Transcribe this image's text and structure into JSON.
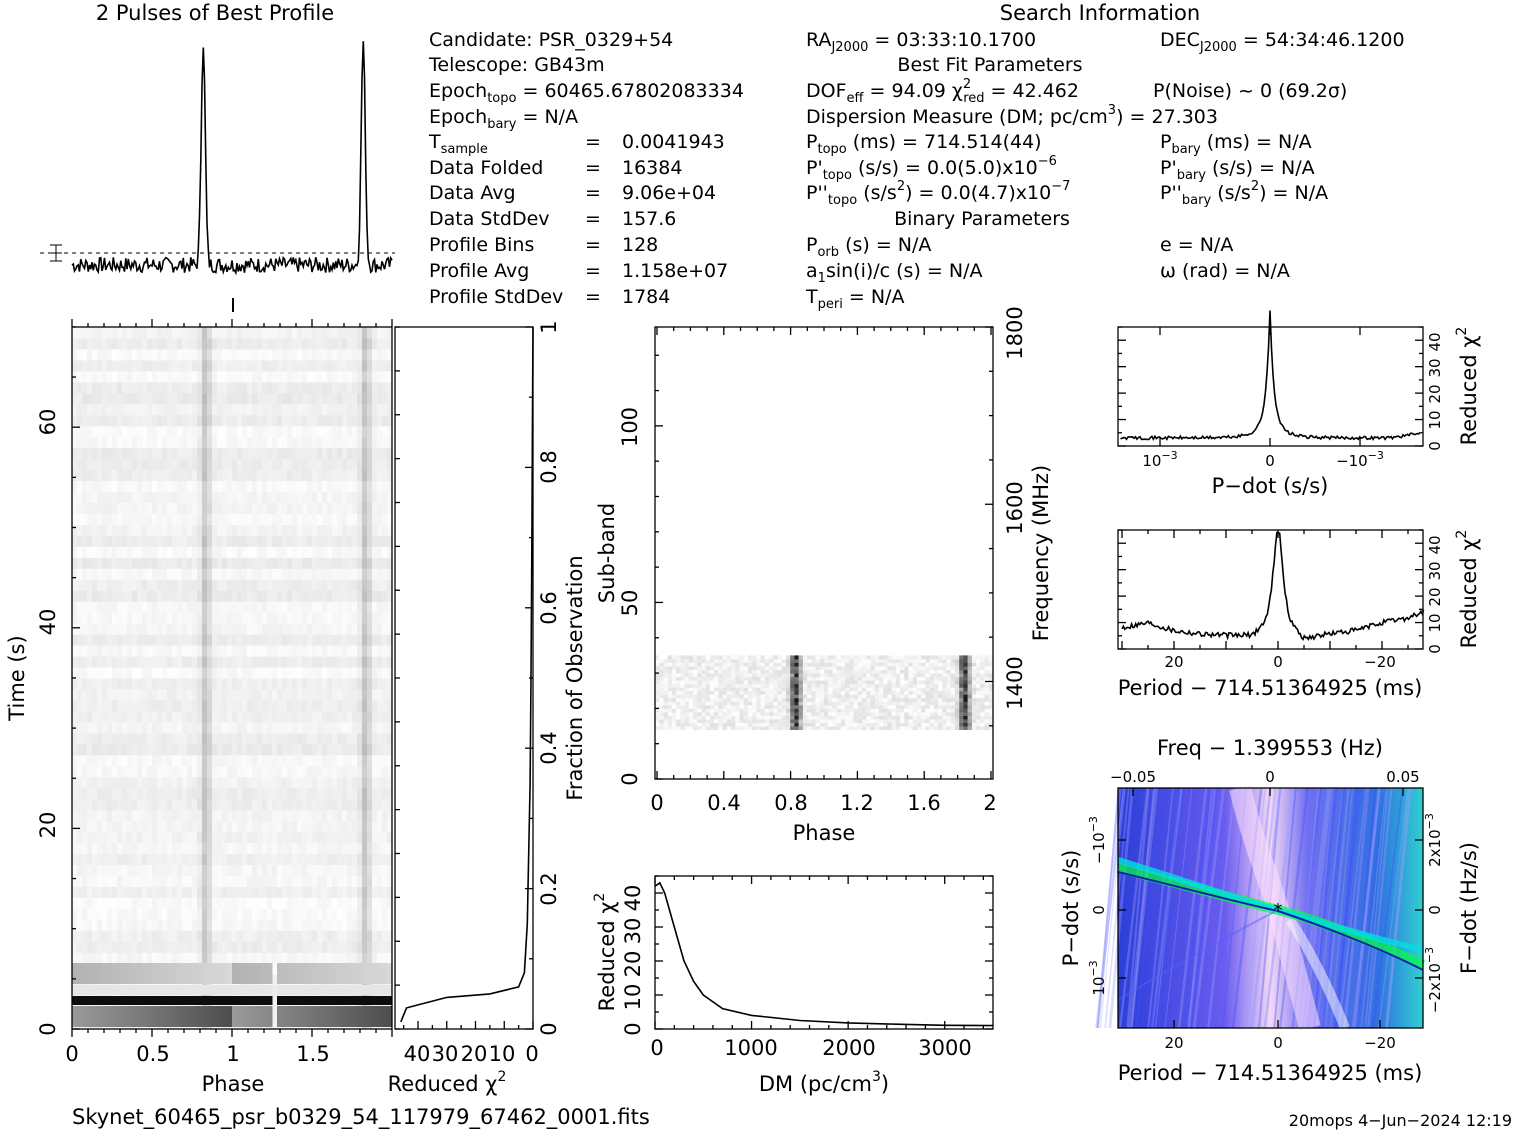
{
  "header": {
    "profile_title": "2 Pulses of Best Profile",
    "search_title": "Search Information",
    "best_fit_title": "Best Fit Parameters",
    "binary_title": "Binary Parameters"
  },
  "info": {
    "candidate": "PSR_0329+54",
    "telescope": "GB43m",
    "epoch_topo": "60465.67802083334",
    "epoch_bary": "N/A",
    "t_sample": "0.0041943",
    "data_folded": "16384",
    "data_avg": "9.06e+04",
    "data_stddev": "157.6",
    "profile_bins": "128",
    "profile_avg": "1.158e+07",
    "profile_stddev": "1784",
    "ra": "03:33:10.1700",
    "dec": "54:34:46.1200",
    "dof_eff": "94.09",
    "chi2_red": "42.462",
    "p_noise": "P(Noise) ~ 0    (69.2σ)",
    "dm_line": "Dispersion Measure (DM; pc/cm",
    "dm_value": ") = 27.303",
    "p_topo": "714.514(44)",
    "pd_topo": "0.0(5.0)x10",
    "pd_topo_exp": "−6",
    "pdd_topo": "0.0(4.7)x10",
    "pdd_topo_exp": "−7",
    "p_bary": "N/A",
    "pd_bary": "N/A",
    "pdd_bary": "N/A",
    "p_orb": "N/A",
    "a1sini": "N/A",
    "t_peri": "N/A",
    "ecc": "N/A",
    "omega": "N/A"
  },
  "footer": {
    "filename": "Skynet_60465_psr_b0329_54_117979_67462_0001.fits",
    "stamp": "20mops  4−Jun−2024 12:19"
  },
  "chart_data": [
    {
      "type": "line",
      "panel": "profile",
      "title": "2 Pulses of Best Profile",
      "x_range": [
        0,
        2
      ],
      "peaks_phase": [
        0.82,
        1.82
      ],
      "peak_height_relative": 1.0,
      "baseline_relative": 0.0
    },
    {
      "type": "heatmap",
      "panel": "time-phase",
      "xlabel": "Phase",
      "ylabel": "Time (s)",
      "xlim": [
        0,
        2
      ],
      "ylim": [
        0,
        70
      ],
      "x_ticks": [
        "0",
        "0.5",
        "1",
        "1.5"
      ],
      "y_ticks": [
        "0",
        "20",
        "40",
        "60"
      ],
      "pulse_phase": [
        0.82,
        1.82
      ]
    },
    {
      "type": "line",
      "panel": "reduced-chi2-vs-time",
      "xlabel": "Reduced χ",
      "x_ticks": [
        "40",
        "30",
        "20",
        "10",
        "0"
      ],
      "y_right_label": "Fraction of Observation",
      "y_right_ticks": [
        "0",
        "0.2",
        "0.4",
        "0.6",
        "0.8",
        "1"
      ],
      "x": [
        45,
        42,
        8,
        3,
        1,
        0.5,
        0
      ],
      "y": [
        0.02,
        0.05,
        0.08,
        0.2,
        0.4,
        0.7,
        1.0
      ]
    },
    {
      "type": "heatmap",
      "panel": "subband-phase",
      "xlabel": "Phase",
      "ylabel": "Sub-band",
      "y_right_label": "Frequency (MHz)",
      "xlim": [
        0,
        2
      ],
      "ylim": [
        0,
        128
      ],
      "x_ticks": [
        "0",
        "0.4",
        "0.8",
        "1.2",
        "1.6",
        "2"
      ],
      "y_ticks": [
        "0",
        "50",
        "100"
      ],
      "y_right_ticks": [
        "1400",
        "1600",
        "1800"
      ],
      "active_subbands": [
        14,
        35
      ],
      "pulse_phase": [
        0.82,
        1.82
      ]
    },
    {
      "type": "line",
      "panel": "dm-curve",
      "xlabel": "DM (pc/cm",
      "ylabel": "Reduced χ",
      "xlim": [
        0,
        3500
      ],
      "ylim": [
        0,
        45
      ],
      "x_ticks": [
        "0",
        "1000",
        "2000",
        "3000"
      ],
      "y_ticks": [
        "0",
        "10",
        "20",
        "30",
        "40"
      ],
      "x": [
        0,
        50,
        100,
        200,
        300,
        400,
        500,
        700,
        1000,
        1500,
        2000,
        2500,
        3000,
        3500
      ],
      "y": [
        42,
        43,
        40,
        30,
        20,
        14,
        10,
        6,
        4,
        2.5,
        1.8,
        1.4,
        1.1,
        1.0
      ]
    },
    {
      "type": "line",
      "panel": "pdot-curve",
      "xlabel": "P−dot (s/s)",
      "ylabel": "Reduced χ",
      "x_ticks": [
        "10",
        "0",
        "−10"
      ],
      "x_tick_exp": "−3",
      "y_ticks": [
        "0",
        "10",
        "20",
        "30",
        "40"
      ],
      "ylim": [
        0,
        45
      ],
      "x": [
        -1.0,
        -0.5,
        -0.2,
        -0.05,
        0,
        0.05,
        0.2,
        0.5,
        1.0
      ],
      "y": [
        2,
        2,
        3,
        10,
        42,
        10,
        3,
        2,
        3
      ]
    },
    {
      "type": "line",
      "panel": "period-curve",
      "xlabel": "Period − 714.51364925 (ms)",
      "ylabel": "Reduced χ",
      "x_ticks": [
        "20",
        "0",
        "−20"
      ],
      "y_ticks": [
        "0",
        "10",
        "20",
        "30",
        "40"
      ],
      "ylim": [
        0,
        45
      ],
      "x": [
        30,
        25,
        20,
        15,
        10,
        5,
        2,
        0,
        -2,
        -5,
        -10,
        -15,
        -20,
        -25,
        -28
      ],
      "y": [
        12,
        15,
        10,
        8,
        7,
        7,
        15,
        42,
        15,
        5,
        8,
        10,
        15,
        18,
        22
      ]
    },
    {
      "type": "heatmap",
      "panel": "pdot-period-plane",
      "title": "Freq − 1.399553 (Hz)",
      "xlabel": "Period − 714.51364925 (ms)",
      "ylabel": "P−dot (s/s)",
      "y_right_label": "F−dot (Hz/s)",
      "x_ticks": [
        "20",
        "0",
        "−20"
      ],
      "x_top_ticks": [
        "−0.05",
        "0",
        "0.05"
      ],
      "y_ticks": [
        "10",
        "0",
        "−10"
      ],
      "y_right_ticks": [
        "−2x10",
        "0",
        "2x10"
      ],
      "best": [
        0,
        0
      ],
      "colors": [
        "#0000ff",
        "#00ffff",
        "#00ff00",
        "#ffc0ff"
      ]
    }
  ]
}
